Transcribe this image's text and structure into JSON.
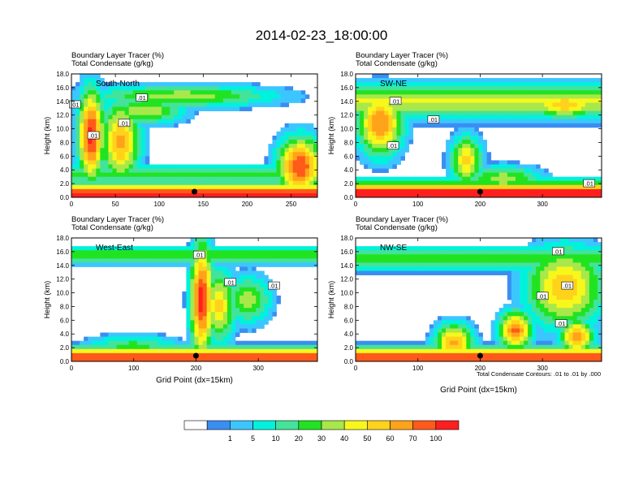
{
  "chart_data": {
    "type": "heatmap",
    "title": "2014-02-23_18:00:00",
    "legend_note": "Total Condensate Contours: .01 to .01 by .000",
    "colorbar": {
      "colors": [
        "#ffffff",
        "#3a8ef2",
        "#3cc6ff",
        "#00f2dc",
        "#43e39a",
        "#21e321",
        "#a8e84a",
        "#f7f71c",
        "#ffd21b",
        "#ffa31a",
        "#ff5a1a",
        "#ff1f1f"
      ],
      "labels": [
        "1",
        "5",
        "10",
        "20",
        "30",
        "40",
        "50",
        "60",
        "70",
        "100"
      ]
    },
    "panels": [
      {
        "id": "south-north",
        "line1": "Boundary Layer Tracer    (%)",
        "line2": "Total Condensate   (g/kg)",
        "region": "South-North",
        "ylabel": "Height (km)",
        "xlabel": "",
        "xlim": [
          0,
          280
        ],
        "ylim": [
          0,
          18
        ],
        "xticks": [
          "0",
          "50",
          "100",
          "150",
          "200",
          "250"
        ],
        "yticks": [
          "0.0",
          "2.0",
          "4.0",
          "6.0",
          "8.0",
          "10.0",
          "12.0",
          "14.0",
          "16.0",
          "18.0"
        ],
        "marker_x": 140,
        "contour_labels": [
          {
            "text": ".01",
            "x": 4,
            "y": 13.5
          },
          {
            "text": ".01",
            "x": 25,
            "y": 9.0
          },
          {
            "text": ".01",
            "x": 60,
            "y": 10.8
          },
          {
            "text": ".01",
            "x": 80,
            "y": 14.5
          }
        ]
      },
      {
        "id": "sw-ne",
        "line1": "Boundary Layer Tracer    (%)",
        "line2": "Total Condensate   (g/kg)",
        "region": "SW-NE",
        "ylabel": "Height (km)",
        "xlabel": "",
        "xlim": [
          0,
          395
        ],
        "ylim": [
          0,
          18
        ],
        "xticks": [
          "0",
          "100",
          "200",
          "300"
        ],
        "yticks": [
          "0.0",
          "2.0",
          "4.0",
          "6.0",
          "8.0",
          "10.0",
          "12.0",
          "14.0",
          "16.0",
          "18.0"
        ],
        "marker_x": 200,
        "contour_labels": [
          {
            "text": ".01",
            "x": 64,
            "y": 14.0
          },
          {
            "text": ".01",
            "x": 125,
            "y": 11.3
          },
          {
            "text": ".01",
            "x": 60,
            "y": 7.5
          },
          {
            "text": ".01",
            "x": 375,
            "y": 2.0
          }
        ]
      },
      {
        "id": "west-east",
        "line1": "Boundary Layer Tracer    (%)",
        "line2": "Total Condensate   (g/kg)",
        "region": "West-East",
        "ylabel": "Height (km)",
        "xlabel": "Grid Point (dx=15km)",
        "xlim": [
          0,
          395
        ],
        "ylim": [
          0,
          18
        ],
        "xticks": [
          "0",
          "100",
          "200",
          "300"
        ],
        "yticks": [
          "0.0",
          "2.0",
          "4.0",
          "6.0",
          "8.0",
          "10.0",
          "12.0",
          "14.0",
          "16.0",
          "18.0"
        ],
        "marker_x": 200,
        "contour_labels": [
          {
            "text": ".01",
            "x": 205,
            "y": 15.5
          },
          {
            "text": ".01",
            "x": 255,
            "y": 11.5
          },
          {
            "text": ".01",
            "x": 325,
            "y": 11.0
          }
        ]
      },
      {
        "id": "nw-se",
        "line1": "Boundary Layer Tracer    (%)",
        "line2": "Total Condensate   (g/kg)",
        "region": "NW-SE",
        "ylabel": "Height (km)",
        "xlabel": "Grid Point (dx=15km)",
        "xlim": [
          0,
          395
        ],
        "ylim": [
          0,
          18
        ],
        "xticks": [
          "0",
          "100",
          "200",
          "300"
        ],
        "yticks": [
          "0.0",
          "2.0",
          "4.0",
          "6.0",
          "8.0",
          "10.0",
          "12.0",
          "14.0",
          "16.0",
          "18.0"
        ],
        "marker_x": 200,
        "contour_labels": [
          {
            "text": ".01",
            "x": 325,
            "y": 16.0
          },
          {
            "text": ".01",
            "x": 340,
            "y": 11.0
          },
          {
            "text": ".01",
            "x": 300,
            "y": 9.5
          },
          {
            "text": ".01",
            "x": 330,
            "y": 5.5
          }
        ]
      }
    ]
  }
}
